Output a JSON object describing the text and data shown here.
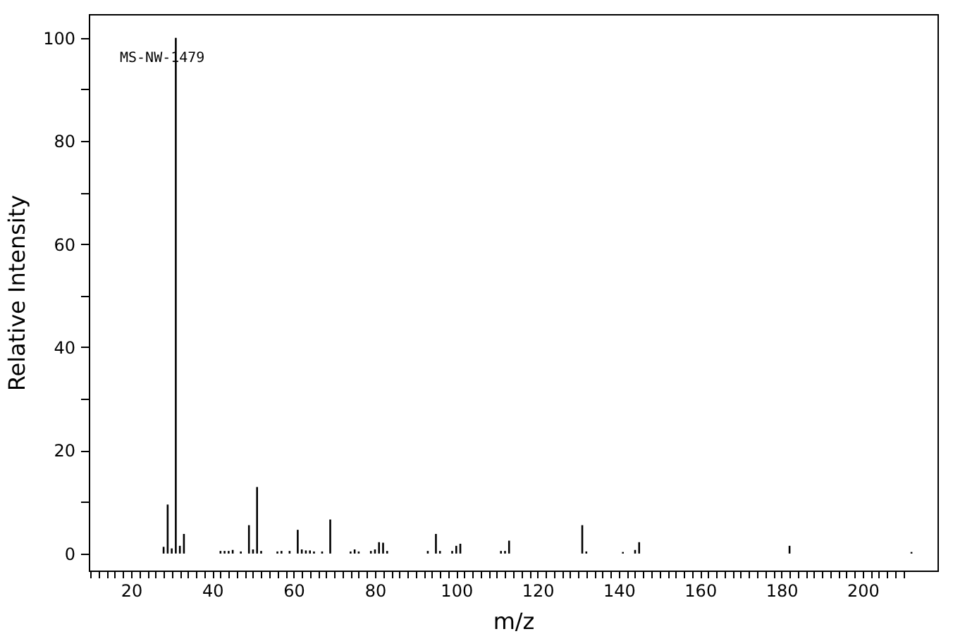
{
  "chart_data": {
    "type": "bar",
    "xlabel": "m/z",
    "ylabel": "Relative Intensity",
    "annotations": [
      "MS-NW-1479"
    ],
    "x": [
      28,
      29,
      30,
      31,
      32,
      33,
      42,
      43,
      44,
      45,
      47,
      49,
      50,
      51,
      52,
      56,
      57,
      59,
      61,
      62,
      63,
      64,
      65,
      67,
      69,
      74,
      75,
      76,
      79,
      80,
      81,
      82,
      83,
      93,
      95,
      96,
      99,
      100,
      101,
      111,
      112,
      113,
      131,
      132,
      141,
      144,
      145,
      182,
      212
    ],
    "series": [
      {
        "color": "#000000",
        "values": [
          1.3,
          9.5,
          1.0,
          100,
          1.5,
          3.8,
          0.5,
          0.5,
          0.5,
          0.7,
          0.4,
          5.5,
          0.8,
          12.9,
          0.5,
          0.4,
          0.5,
          0.5,
          4.6,
          0.8,
          0.6,
          0.6,
          0.4,
          0.4,
          6.6,
          0.4,
          0.8,
          0.4,
          0.5,
          0.8,
          2.2,
          2.1,
          0.5,
          0.5,
          3.8,
          0.5,
          0.5,
          1.5,
          1.9,
          0.5,
          0.5,
          2.5,
          5.5,
          0.4,
          0.3,
          0.7,
          2.2,
          1.5,
          0.3
        ]
      }
    ],
    "xlim": [
      9.6,
      218.4
    ],
    "ylim": [
      -3.3,
      104.6
    ],
    "xticks": [
      {
        "value": 10,
        "label": null
      },
      {
        "value": 12,
        "label": null
      },
      {
        "value": 14,
        "label": null
      },
      {
        "value": 16,
        "label": null
      },
      {
        "value": 18,
        "label": null
      },
      20,
      {
        "value": 22,
        "label": null
      },
      {
        "value": 24,
        "label": null
      },
      {
        "value": 26,
        "label": null
      },
      {
        "value": 28,
        "label": null
      },
      {
        "value": 30,
        "label": null
      },
      {
        "value": 32,
        "label": null
      },
      {
        "value": 34,
        "label": null
      },
      {
        "value": 36,
        "label": null
      },
      {
        "value": 38,
        "label": null
      },
      40,
      {
        "value": 42,
        "label": null
      },
      {
        "value": 44,
        "label": null
      },
      {
        "value": 46,
        "label": null
      },
      {
        "value": 48,
        "label": null
      },
      {
        "value": 50,
        "label": null
      },
      {
        "value": 52,
        "label": null
      },
      {
        "value": 54,
        "label": null
      },
      {
        "value": 56,
        "label": null
      },
      {
        "value": 58,
        "label": null
      },
      60,
      {
        "value": 62,
        "label": null
      },
      {
        "value": 64,
        "label": null
      },
      {
        "value": 66,
        "label": null
      },
      {
        "value": 68,
        "label": null
      },
      {
        "value": 70,
        "label": null
      },
      {
        "value": 72,
        "label": null
      },
      {
        "value": 74,
        "label": null
      },
      {
        "value": 76,
        "label": null
      },
      {
        "value": 78,
        "label": null
      },
      80,
      {
        "value": 82,
        "label": null
      },
      {
        "value": 84,
        "label": null
      },
      {
        "value": 86,
        "label": null
      },
      {
        "value": 88,
        "label": null
      },
      {
        "value": 90,
        "label": null
      },
      {
        "value": 92,
        "label": null
      },
      {
        "value": 94,
        "label": null
      },
      {
        "value": 96,
        "label": null
      },
      {
        "value": 98,
        "label": null
      },
      100,
      {
        "value": 102,
        "label": null
      },
      {
        "value": 104,
        "label": null
      },
      {
        "value": 106,
        "label": null
      },
      {
        "value": 108,
        "label": null
      },
      {
        "value": 110,
        "label": null
      },
      {
        "value": 112,
        "label": null
      },
      {
        "value": 114,
        "label": null
      },
      {
        "value": 116,
        "label": null
      },
      {
        "value": 118,
        "label": null
      },
      120,
      {
        "value": 122,
        "label": null
      },
      {
        "value": 124,
        "label": null
      },
      {
        "value": 126,
        "label": null
      },
      {
        "value": 128,
        "label": null
      },
      {
        "value": 130,
        "label": null
      },
      {
        "value": 132,
        "label": null
      },
      {
        "value": 134,
        "label": null
      },
      {
        "value": 136,
        "label": null
      },
      {
        "value": 138,
        "label": null
      },
      140,
      {
        "value": 142,
        "label": null
      },
      {
        "value": 144,
        "label": null
      },
      {
        "value": 146,
        "label": null
      },
      {
        "value": 148,
        "label": null
      },
      {
        "value": 150,
        "label": null
      },
      {
        "value": 152,
        "label": null
      },
      {
        "value": 154,
        "label": null
      },
      {
        "value": 156,
        "label": null
      },
      {
        "value": 158,
        "label": null
      },
      160,
      {
        "value": 162,
        "label": null
      },
      {
        "value": 164,
        "label": null
      },
      {
        "value": 166,
        "label": null
      },
      {
        "value": 168,
        "label": null
      },
      {
        "value": 170,
        "label": null
      },
      {
        "value": 172,
        "label": null
      },
      {
        "value": 174,
        "label": null
      },
      {
        "value": 176,
        "label": null
      },
      {
        "value": 178,
        "label": null
      },
      180,
      {
        "value": 182,
        "label": null
      },
      {
        "value": 184,
        "label": null
      },
      {
        "value": 186,
        "label": null
      },
      {
        "value": 188,
        "label": null
      },
      {
        "value": 190,
        "label": null
      },
      {
        "value": 192,
        "label": null
      },
      {
        "value": 194,
        "label": null
      },
      {
        "value": 196,
        "label": null
      },
      {
        "value": 198,
        "label": null
      },
      200,
      {
        "value": 202,
        "label": null
      },
      {
        "value": 204,
        "label": null
      },
      {
        "value": 206,
        "label": null
      },
      {
        "value": 208,
        "label": null
      },
      {
        "value": 210,
        "label": null
      }
    ],
    "yticks": [
      0,
      {
        "value": 10,
        "label": null
      },
      20,
      {
        "value": 30,
        "label": null
      },
      40,
      {
        "value": 50,
        "label": null
      },
      60,
      {
        "value": 70,
        "label": null
      },
      80,
      {
        "value": 90,
        "label": null
      },
      100
    ],
    "grid": false
  }
}
